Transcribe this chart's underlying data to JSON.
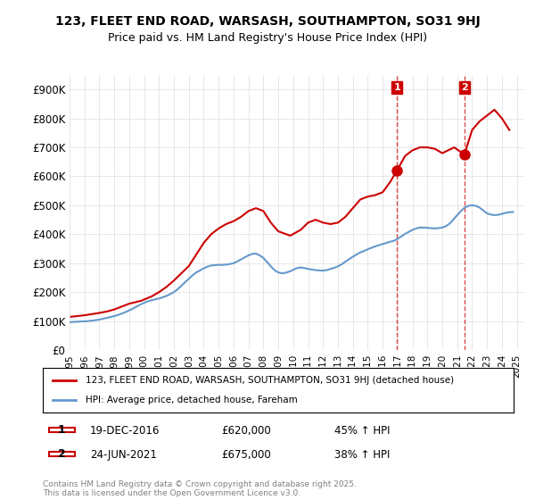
{
  "title_line1": "123, FLEET END ROAD, WARSASH, SOUTHAMPTON, SO31 9HJ",
  "title_line2": "Price paid vs. HM Land Registry's House Price Index (HPI)",
  "ylabel": "",
  "ylim": [
    0,
    950000
  ],
  "yticks": [
    0,
    100000,
    200000,
    300000,
    400000,
    500000,
    600000,
    700000,
    800000,
    900000
  ],
  "ytick_labels": [
    "£0",
    "£100K",
    "£200K",
    "£300K",
    "£400K",
    "£500K",
    "£600K",
    "£700K",
    "£800K",
    "£900K"
  ],
  "hpi_color": "#6699cc",
  "price_color": "#cc0000",
  "marker_color_1": "#cc0000",
  "marker_color_2": "#cc0000",
  "dashed_line_color": "#cc0000",
  "legend_label_price": "123, FLEET END ROAD, WARSASH, SOUTHAMPTON, SO31 9HJ (detached house)",
  "legend_label_hpi": "HPI: Average price, detached house, Fareham",
  "transaction_1_label": "1",
  "transaction_1_date": "19-DEC-2016",
  "transaction_1_price": "£620,000",
  "transaction_1_hpi": "45% ↑ HPI",
  "transaction_2_label": "2",
  "transaction_2_date": "24-JUN-2021",
  "transaction_2_price": "£675,000",
  "transaction_2_hpi": "38% ↑ HPI",
  "footer": "Contains HM Land Registry data © Crown copyright and database right 2025.\nThis data is licensed under the Open Government Licence v3.0.",
  "xtick_years": [
    1995,
    1996,
    1997,
    1998,
    1999,
    2000,
    2001,
    2002,
    2003,
    2004,
    2005,
    2006,
    2007,
    2008,
    2009,
    2010,
    2011,
    2012,
    2013,
    2014,
    2015,
    2016,
    2017,
    2018,
    2019,
    2020,
    2021,
    2022,
    2023,
    2024,
    2025
  ],
  "hpi_x": [
    1995.0,
    1995.25,
    1995.5,
    1995.75,
    1996.0,
    1996.25,
    1996.5,
    1996.75,
    1997.0,
    1997.25,
    1997.5,
    1997.75,
    1998.0,
    1998.25,
    1998.5,
    1998.75,
    1999.0,
    1999.25,
    1999.5,
    1999.75,
    2000.0,
    2000.25,
    2000.5,
    2000.75,
    2001.0,
    2001.25,
    2001.5,
    2001.75,
    2002.0,
    2002.25,
    2002.5,
    2002.75,
    2003.0,
    2003.25,
    2003.5,
    2003.75,
    2004.0,
    2004.25,
    2004.5,
    2004.75,
    2005.0,
    2005.25,
    2005.5,
    2005.75,
    2006.0,
    2006.25,
    2006.5,
    2006.75,
    2007.0,
    2007.25,
    2007.5,
    2007.75,
    2008.0,
    2008.25,
    2008.5,
    2008.75,
    2009.0,
    2009.25,
    2009.5,
    2009.75,
    2010.0,
    2010.25,
    2010.5,
    2010.75,
    2011.0,
    2011.25,
    2011.5,
    2011.75,
    2012.0,
    2012.25,
    2012.5,
    2012.75,
    2013.0,
    2013.25,
    2013.5,
    2013.75,
    2014.0,
    2014.25,
    2014.5,
    2014.75,
    2015.0,
    2015.25,
    2015.5,
    2015.75,
    2016.0,
    2016.25,
    2016.5,
    2016.75,
    2017.0,
    2017.25,
    2017.5,
    2017.75,
    2018.0,
    2018.25,
    2018.5,
    2018.75,
    2019.0,
    2019.25,
    2019.5,
    2019.75,
    2020.0,
    2020.25,
    2020.5,
    2020.75,
    2021.0,
    2021.25,
    2021.5,
    2021.75,
    2022.0,
    2022.25,
    2022.5,
    2022.75,
    2023.0,
    2023.25,
    2023.5,
    2023.75,
    2024.0,
    2024.25,
    2024.5,
    2024.75
  ],
  "hpi_y": [
    96000,
    97000,
    97500,
    98500,
    99000,
    100000,
    101500,
    103000,
    105000,
    108000,
    111000,
    114000,
    117000,
    121000,
    126000,
    131000,
    137000,
    143000,
    150000,
    157000,
    163000,
    168000,
    172000,
    175000,
    178000,
    182000,
    187000,
    193000,
    200000,
    210000,
    222000,
    234000,
    246000,
    258000,
    268000,
    275000,
    282000,
    288000,
    292000,
    293000,
    294000,
    294000,
    295000,
    297000,
    300000,
    306000,
    313000,
    320000,
    327000,
    332000,
    333000,
    327000,
    318000,
    304000,
    289000,
    276000,
    268000,
    265000,
    267000,
    271000,
    277000,
    283000,
    285000,
    283000,
    280000,
    278000,
    276000,
    275000,
    274000,
    276000,
    280000,
    284000,
    289000,
    296000,
    305000,
    314000,
    322000,
    330000,
    337000,
    342000,
    348000,
    353000,
    358000,
    362000,
    366000,
    370000,
    374000,
    377000,
    384000,
    392000,
    401000,
    408000,
    415000,
    420000,
    423000,
    423000,
    422000,
    421000,
    420000,
    421000,
    423000,
    428000,
    437000,
    451000,
    466000,
    480000,
    492000,
    498000,
    500000,
    498000,
    492000,
    482000,
    472000,
    468000,
    466000,
    467000,
    470000,
    474000,
    476000,
    477000
  ],
  "price_x": [
    1995.1,
    1995.5,
    1996.0,
    1997.0,
    1997.5,
    1998.0,
    1998.5,
    1999.0,
    1999.8,
    2000.5,
    2001.0,
    2001.5,
    2002.0,
    2002.5,
    2003.0,
    2003.5,
    2004.0,
    2004.5,
    2005.0,
    2005.5,
    2006.0,
    2006.5,
    2007.0,
    2007.5,
    2008.0,
    2008.5,
    2009.0,
    2009.8,
    2010.5,
    2011.0,
    2011.5,
    2012.0,
    2012.5,
    2013.0,
    2013.5,
    2014.0,
    2014.5,
    2015.0,
    2015.5,
    2016.0,
    2016.5,
    2016.96,
    2017.5,
    2018.0,
    2018.5,
    2019.0,
    2019.5,
    2020.0,
    2020.8,
    2021.48,
    2022.0,
    2022.5,
    2023.0,
    2023.5,
    2024.0,
    2024.5
  ],
  "price_y": [
    115000,
    117000,
    120000,
    128000,
    133000,
    140000,
    150000,
    160000,
    170000,
    185000,
    200000,
    218000,
    240000,
    265000,
    290000,
    330000,
    370000,
    400000,
    420000,
    435000,
    445000,
    460000,
    480000,
    490000,
    480000,
    440000,
    410000,
    395000,
    415000,
    440000,
    450000,
    440000,
    435000,
    440000,
    460000,
    490000,
    520000,
    530000,
    535000,
    545000,
    580000,
    620000,
    670000,
    690000,
    700000,
    700000,
    695000,
    680000,
    700000,
    675000,
    760000,
    790000,
    810000,
    830000,
    800000,
    760000
  ],
  "transaction_1_x": 2016.96,
  "transaction_1_y": 620000,
  "transaction_2_x": 2021.48,
  "transaction_2_y": 675000,
  "bg_color": "#ffffff",
  "grid_color": "#dddddd"
}
